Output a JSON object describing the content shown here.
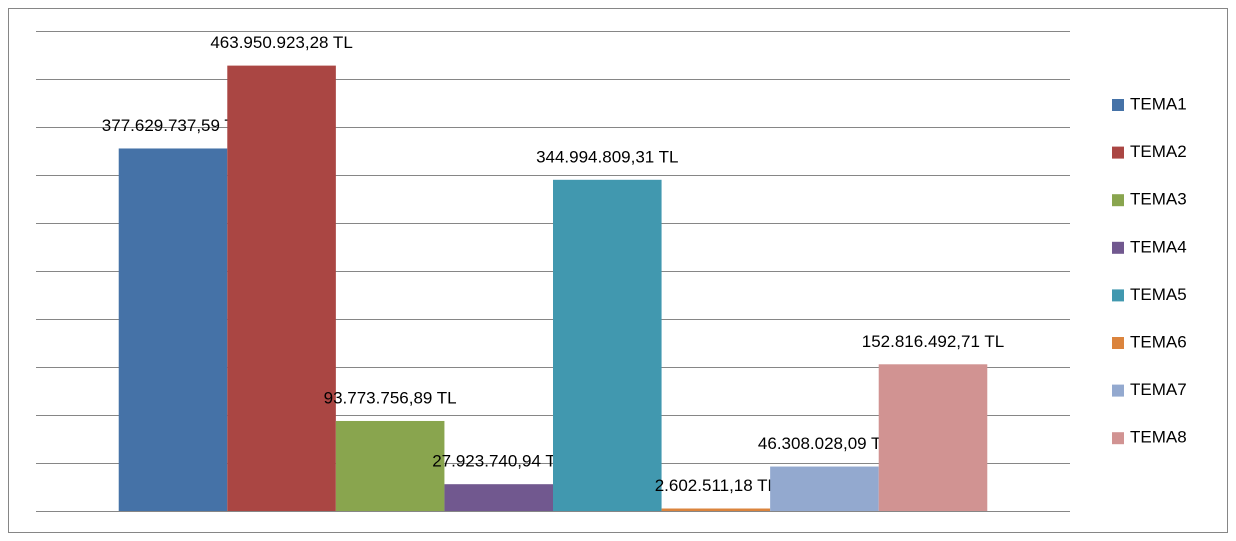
{
  "chart_data": {
    "type": "bar",
    "categories": [
      null
    ],
    "series": [
      {
        "name": "TEMA1",
        "color": "#4572a7",
        "values": [
          377629737.59
        ],
        "value_labels": [
          "377.629.737,59 TL"
        ]
      },
      {
        "name": "TEMA2",
        "color": "#aa4643",
        "values": [
          463950923.28
        ],
        "value_labels": [
          "463.950.923,28 TL"
        ]
      },
      {
        "name": "TEMA3",
        "color": "#89a54e",
        "values": [
          93773756.89
        ],
        "value_labels": [
          "93.773.756,89 TL"
        ]
      },
      {
        "name": "TEMA4",
        "color": "#71588f",
        "values": [
          27923740.94
        ],
        "value_labels": [
          "27.923.740,94 TL"
        ]
      },
      {
        "name": "TEMA5",
        "color": "#4198af",
        "values": [
          344994809.31
        ],
        "value_labels": [
          "344.994.809,31 TL"
        ]
      },
      {
        "name": "TEMA6",
        "color": "#db843d",
        "values": [
          2602511.18
        ],
        "value_labels": [
          "2.602.511,18 TL"
        ]
      },
      {
        "name": "TEMA7",
        "color": "#93a9cf",
        "values": [
          46308028.09
        ],
        "value_labels": [
          "46.308.028,09 TL"
        ]
      },
      {
        "name": "TEMA8",
        "color": "#d19392",
        "values": [
          152816492.71
        ],
        "value_labels": [
          "152.816.492,71 TL"
        ]
      }
    ],
    "ylim": [
      0,
      500000000
    ],
    "yticks": [
      0,
      50000000,
      100000000,
      150000000,
      200000000,
      250000000,
      300000000,
      350000000,
      400000000,
      450000000,
      500000000
    ],
    "grid": true,
    "legend": "right"
  }
}
